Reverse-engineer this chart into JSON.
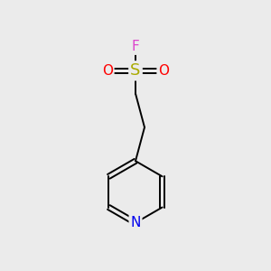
{
  "background_color": "#ebebeb",
  "atom_colors": {
    "F": "#dd44cc",
    "S": "#aaaa00",
    "O": "#ff0000",
    "N": "#0000ee",
    "C": "#000000"
  },
  "font_size_atoms": 11,
  "figsize": [
    3.0,
    3.0
  ],
  "dpi": 100,
  "lw": 1.4
}
